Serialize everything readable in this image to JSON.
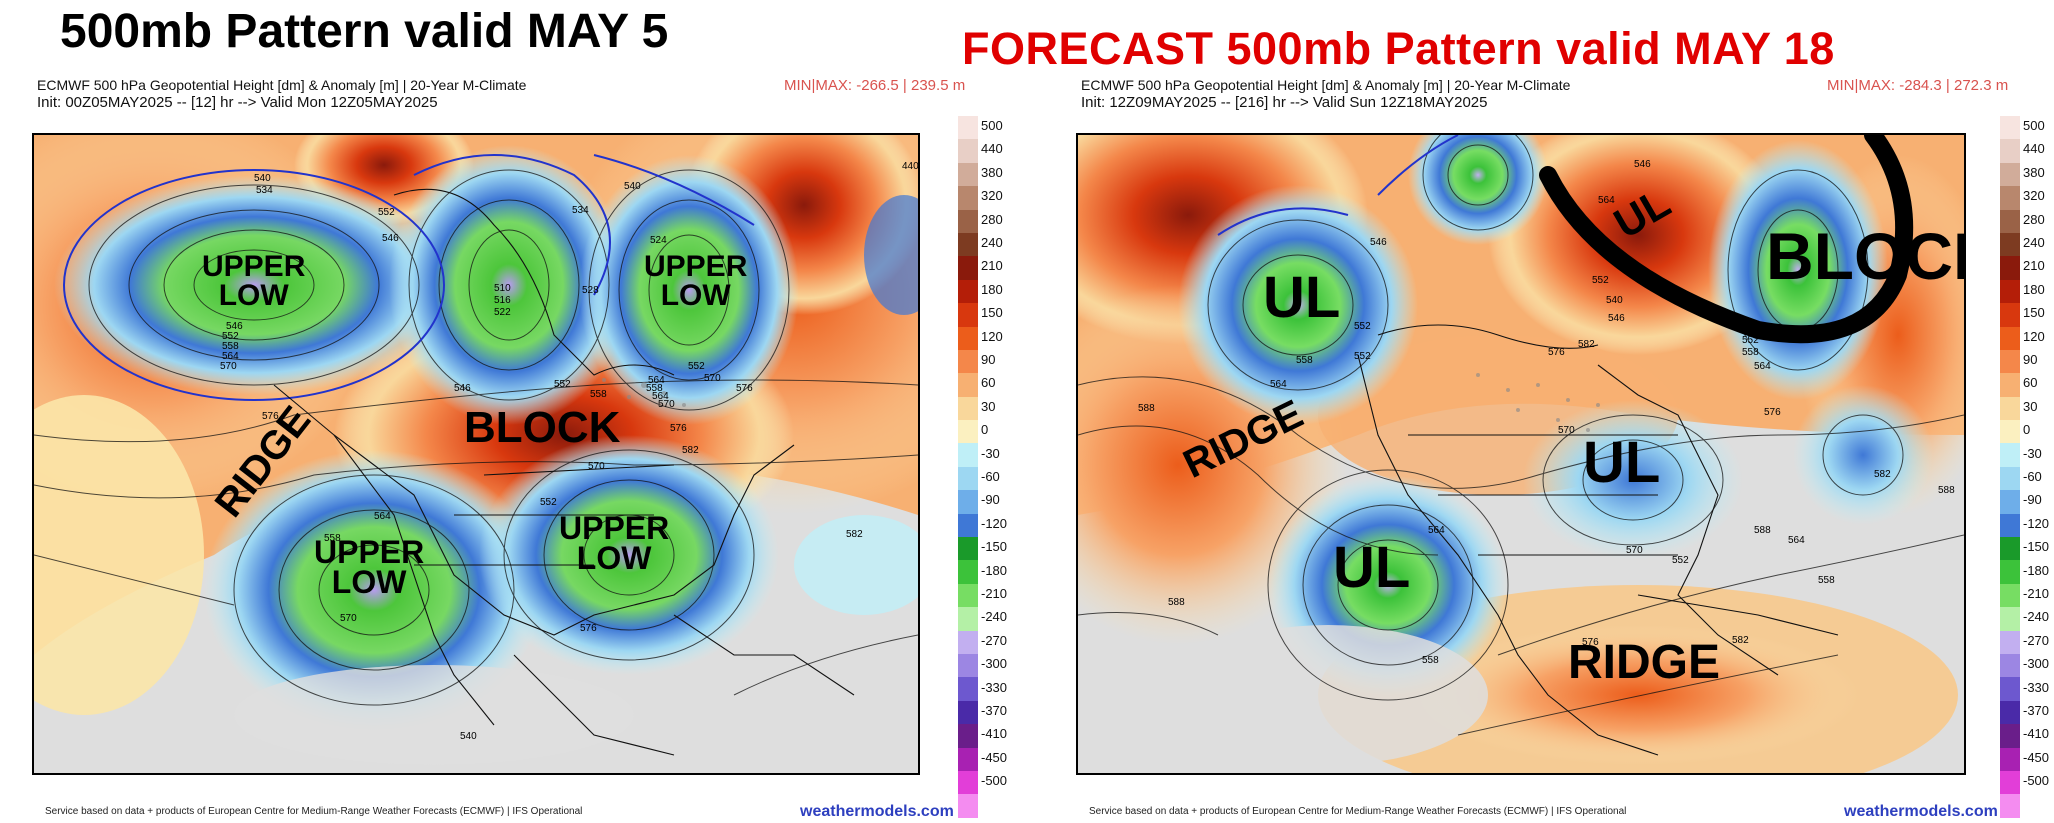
{
  "left": {
    "title": "500mb Pattern valid MAY 5",
    "product": "ECMWF 500 hPa Geopotential Height [dm] & Anomaly [m] | 20-Year M-Climate",
    "init": "Init: 00Z05MAY2025 -- [12] hr --> Valid Mon 12Z05MAY2025",
    "minmax": "MIN|MAX: -266.5 | 239.5 m",
    "annotations": [
      "UPPER\nLOW",
      "RIDGE",
      "UPPER\nLOW",
      "BLOCK",
      "UPPER\nLOW",
      "UPPER\nLOW"
    ],
    "contour_labels": [
      "540",
      "534",
      "552",
      "546",
      "540",
      "534",
      "528",
      "522",
      "516",
      "510",
      "524",
      "546",
      "552",
      "558",
      "564",
      "570",
      "576",
      "546",
      "552",
      "558",
      "564",
      "570",
      "576",
      "570",
      "564",
      "558",
      "552",
      "576",
      "582",
      "570",
      "564",
      "558",
      "552",
      "570",
      "576",
      "582",
      "540",
      "440"
    ],
    "footer": "Service based on data + products of European Centre for Medium-Range Weather Forecasts (ECMWF) | IFS Operational",
    "link": "weathermodels.com"
  },
  "right": {
    "title": "FORECAST 500mb Pattern valid MAY 18",
    "product": "ECMWF 500 hPa Geopotential Height [dm] & Anomaly [m] | 20-Year M-Climate",
    "init": "Init: 12Z09MAY2025 -- [216] hr --> Valid Sun 12Z18MAY2025",
    "minmax": "MIN|MAX: -284.3 | 272.3 m",
    "annotations": [
      "UL",
      "RIDGE",
      "UL",
      "BLOCK",
      "UL",
      "UL",
      "RIDGE"
    ],
    "contour_labels": [
      "546",
      "552",
      "558",
      "564",
      "588",
      "588",
      "564",
      "558",
      "552",
      "546",
      "564",
      "558",
      "552",
      "540",
      "546",
      "552",
      "558",
      "564",
      "570",
      "576",
      "582",
      "588",
      "564",
      "570",
      "576",
      "582",
      "588",
      "558",
      "552",
      "576",
      "582"
    ],
    "footer": "Service based on data + products of European Centre for Medium-Range Weather Forecasts (ECMWF) | IFS Operational",
    "link": "weathermodels.com"
  },
  "colorbar": {
    "labels": [
      "500",
      "440",
      "380",
      "320",
      "280",
      "240",
      "210",
      "180",
      "150",
      "120",
      "90",
      "60",
      "30",
      "0",
      "-30",
      "-60",
      "-90",
      "-120",
      "-150",
      "-180",
      "-210",
      "-240",
      "-270",
      "-300",
      "-330",
      "-370",
      "-410",
      "-450",
      "-500"
    ],
    "colors": [
      "#f7e4e0",
      "#e8cfc6",
      "#d1ac9a",
      "#b8876d",
      "#9a6247",
      "#7d3b21",
      "#8a1a0c",
      "#b41e08",
      "#d8380e",
      "#ec5d1b",
      "#f4874a",
      "#f7b072",
      "#f9d79b",
      "#fbf0c0",
      "#bfeff7",
      "#9dd7f2",
      "#6eaee9",
      "#3f78d6",
      "#1a9a2a",
      "#3cc23a",
      "#77dd63",
      "#b4f0a6",
      "#c2aff0",
      "#9c86e3",
      "#6d58cf",
      "#4a2aa8",
      "#6a1e8a",
      "#a821b2",
      "#e23ed8",
      "#f48cf0"
    ]
  }
}
